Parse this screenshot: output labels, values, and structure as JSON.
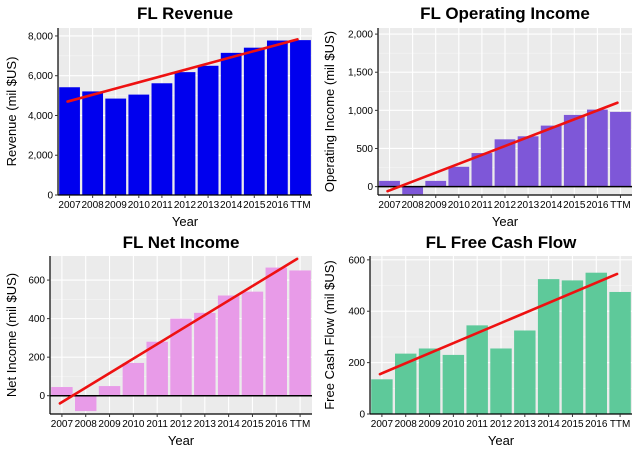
{
  "chart_data": [
    {
      "type": "bar",
      "title": "FL Revenue",
      "xlabel": "Year",
      "ylabel": "Revenue (mil $US)",
      "categories": [
        "2007",
        "2008",
        "2009",
        "2010",
        "2011",
        "2012",
        "2013",
        "2014",
        "2015",
        "2016",
        "TTM"
      ],
      "values": [
        5420,
        5210,
        4850,
        5050,
        5620,
        6180,
        6500,
        7150,
        7410,
        7770,
        7790
      ],
      "ylim": [
        0,
        8400
      ],
      "yticks": [
        0,
        2000,
        4000,
        6000,
        8000
      ],
      "ytick_labels": [
        "0",
        "2,000",
        "4,000",
        "6,000",
        "8,000"
      ],
      "trend": [
        4700,
        7830
      ],
      "bar_color": "#0000ee",
      "trend_color": "#ee1111",
      "grid": true
    },
    {
      "type": "bar",
      "title": "FL Operating Income",
      "xlabel": "Year",
      "ylabel": "Operating Income (mil $US)",
      "categories": [
        "2007",
        "2008",
        "2009",
        "2010",
        "2011",
        "2012",
        "2013",
        "2014",
        "2015",
        "2016",
        "TTM"
      ],
      "values": [
        75,
        -100,
        75,
        260,
        440,
        620,
        660,
        800,
        940,
        1010,
        980
      ],
      "ylim": [
        -110,
        2080
      ],
      "yticks": [
        0,
        500,
        1000,
        1500,
        2000
      ],
      "ytick_labels": [
        "0",
        "500",
        "1,000",
        "1,500",
        "2,000"
      ],
      "trend": [
        -60,
        1100
      ],
      "bar_color": "#7e57d8",
      "trend_color": "#ee1111",
      "grid": true
    },
    {
      "type": "bar",
      "title": "FL Net Income",
      "xlabel": "Year",
      "ylabel": "Net Income (mil $US)",
      "categories": [
        "2007",
        "2008",
        "2009",
        "2010",
        "2011",
        "2012",
        "2013",
        "2014",
        "2015",
        "2016",
        "TTM"
      ],
      "values": [
        45,
        -80,
        50,
        170,
        280,
        400,
        430,
        520,
        540,
        665,
        650
      ],
      "ylim": [
        -95,
        725
      ],
      "yticks": [
        0,
        200,
        400,
        600
      ],
      "ytick_labels": [
        "0",
        "200",
        "400",
        "600"
      ],
      "trend": [
        -40,
        710
      ],
      "bar_color": "#e89be8",
      "trend_color": "#ee1111",
      "grid": true
    },
    {
      "type": "bar",
      "title": "FL Free Cash Flow",
      "xlabel": "Year",
      "ylabel": "Free Cash Flow (mil $US)",
      "categories": [
        "2007",
        "2008",
        "2009",
        "2010",
        "2011",
        "2012",
        "2013",
        "2014",
        "2015",
        "2016",
        "TTM"
      ],
      "values": [
        135,
        235,
        255,
        230,
        345,
        255,
        325,
        525,
        520,
        550,
        475
      ],
      "ylim": [
        0,
        615
      ],
      "yticks": [
        0,
        200,
        400,
        600
      ],
      "ytick_labels": [
        "0",
        "200",
        "400",
        "600"
      ],
      "trend": [
        155,
        545
      ],
      "bar_color": "#5ec99a",
      "trend_color": "#ee1111",
      "grid": true
    }
  ]
}
